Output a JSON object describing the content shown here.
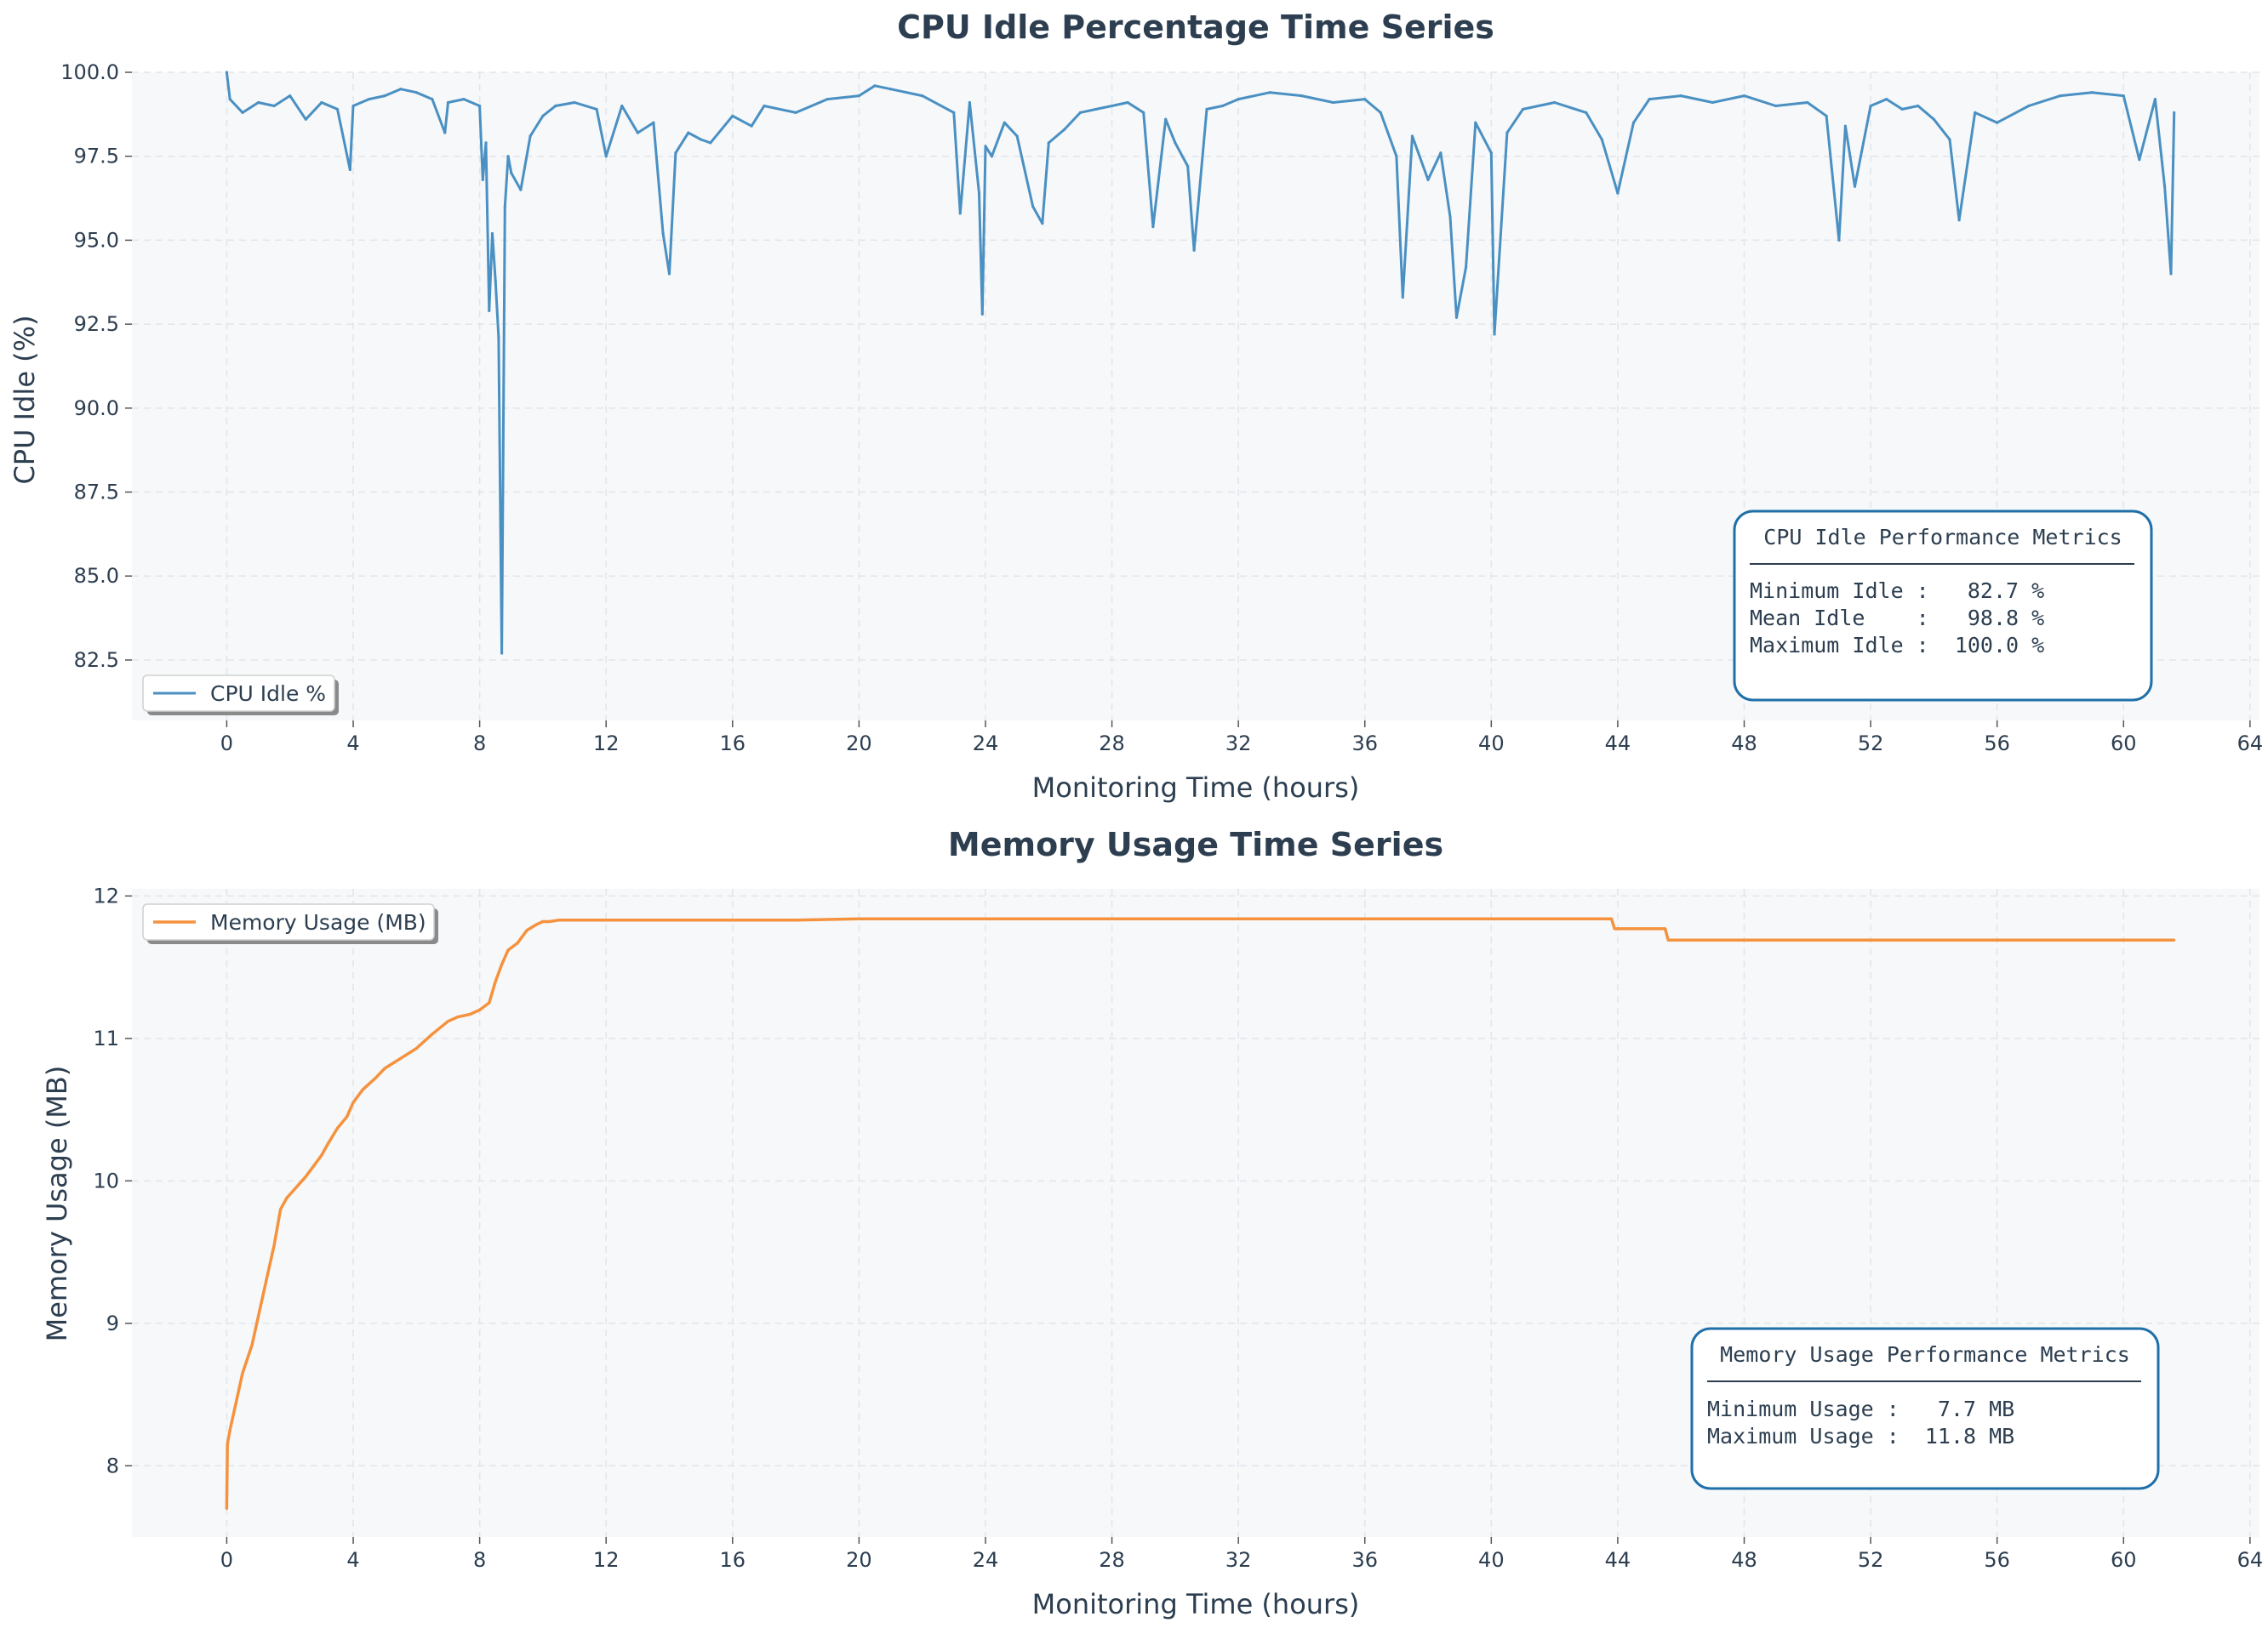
{
  "colors": {
    "cpu_line": "#4a90c2",
    "mem_line": "#f5923e",
    "plot_bg": "#f6f8fa",
    "grid": "#e2e5ea",
    "text": "#2c3e50",
    "box_border": "#1f6fa8"
  },
  "chart_data": [
    {
      "type": "line",
      "title": "CPU Idle Percentage Time Series",
      "xlabel": "Monitoring Time (hours)",
      "ylabel": "CPU Idle (%)",
      "xlim": [
        -3,
        64.3
      ],
      "ylim": [
        80.7,
        100
      ],
      "xticks": [
        0,
        4,
        8,
        12,
        16,
        20,
        24,
        28,
        32,
        36,
        40,
        44,
        48,
        52,
        56,
        60,
        64
      ],
      "yticks": [
        82.5,
        85.0,
        87.5,
        90.0,
        92.5,
        95.0,
        97.5,
        100.0
      ],
      "grid": true,
      "legend": "lower-left",
      "series": [
        {
          "name": "CPU Idle %",
          "x": [
            0,
            0.1,
            0.5,
            1,
            1.5,
            2,
            2.5,
            3,
            3.5,
            3.9,
            4,
            4.5,
            5,
            5.5,
            6,
            6.5,
            6.9,
            7,
            7.5,
            8,
            8.1,
            8.2,
            8.3,
            8.4,
            8.5,
            8.6,
            8.7,
            8.8,
            8.9,
            9,
            9.3,
            9.6,
            10,
            10.4,
            11,
            11.7,
            12,
            12.5,
            13,
            13.5,
            13.8,
            14,
            14.2,
            14.6,
            15,
            15.3,
            16,
            16.6,
            17,
            18,
            19,
            20,
            20.5,
            21,
            22,
            23,
            23.2,
            23.5,
            23.8,
            23.9,
            24,
            24.2,
            24.6,
            25,
            25.5,
            25.8,
            26,
            26.5,
            27,
            27.5,
            28,
            28.5,
            29,
            29.3,
            29.7,
            30,
            30.4,
            30.6,
            31,
            31.5,
            32,
            33,
            34,
            35,
            36,
            36.5,
            37,
            37.2,
            37.5,
            38,
            38.4,
            38.7,
            38.9,
            39.2,
            39.5,
            40,
            40.1,
            40.5,
            41,
            42,
            43,
            43.5,
            44,
            44.5,
            45,
            46,
            47,
            48,
            49,
            50,
            50.6,
            51,
            51.2,
            51.5,
            52,
            52.5,
            53,
            53.5,
            54,
            54.5,
            54.8,
            55.3,
            56,
            57,
            58,
            59,
            60,
            60.5,
            61,
            61.3,
            61.5,
            61.6
          ],
          "y": [
            100.0,
            99.2,
            98.8,
            99.1,
            99.0,
            99.3,
            98.6,
            99.1,
            98.9,
            97.1,
            99.0,
            99.2,
            99.3,
            99.5,
            99.4,
            99.2,
            98.2,
            99.1,
            99.2,
            99.0,
            96.8,
            97.9,
            92.9,
            95.2,
            93.8,
            92.1,
            82.7,
            96.0,
            97.5,
            97.0,
            96.5,
            98.1,
            98.7,
            99.0,
            99.1,
            98.9,
            97.5,
            99.0,
            98.2,
            98.5,
            95.2,
            94.0,
            97.6,
            98.2,
            98.0,
            97.9,
            98.7,
            98.4,
            99.0,
            98.8,
            99.2,
            99.3,
            99.6,
            99.5,
            99.3,
            98.8,
            95.8,
            99.1,
            96.4,
            92.8,
            97.8,
            97.5,
            98.5,
            98.1,
            96.0,
            95.5,
            97.9,
            98.3,
            98.8,
            98.9,
            99.0,
            99.1,
            98.8,
            95.4,
            98.6,
            97.9,
            97.2,
            94.7,
            98.9,
            99.0,
            99.2,
            99.4,
            99.3,
            99.1,
            99.2,
            98.8,
            97.5,
            93.3,
            98.1,
            96.8,
            97.6,
            95.7,
            92.7,
            94.2,
            98.5,
            97.6,
            92.2,
            98.2,
            98.9,
            99.1,
            98.8,
            98.0,
            96.4,
            98.5,
            99.2,
            99.3,
            99.1,
            99.3,
            99.0,
            99.1,
            98.7,
            95.0,
            98.4,
            96.6,
            99.0,
            99.2,
            98.9,
            99.0,
            98.6,
            98.0,
            95.6,
            98.8,
            98.5,
            99.0,
            99.3,
            99.4,
            99.3,
            97.4,
            99.2,
            96.6,
            94.0,
            98.8
          ]
        }
      ],
      "annotation": {
        "title": "CPU Idle Performance Metrics",
        "lines": [
          "Minimum Idle :   82.7 %",
          "Mean Idle    :   98.8 %",
          "Maximum Idle :  100.0 %"
        ]
      }
    },
    {
      "type": "line",
      "title": "Memory Usage Time Series",
      "xlabel": "Monitoring Time (hours)",
      "ylabel": "Memory Usage (MB)",
      "xlim": [
        -3,
        64.3
      ],
      "ylim": [
        7.5,
        12.05
      ],
      "xticks": [
        0,
        4,
        8,
        12,
        16,
        20,
        24,
        28,
        32,
        36,
        40,
        44,
        48,
        52,
        56,
        60,
        64
      ],
      "yticks": [
        8,
        9,
        10,
        11,
        12
      ],
      "grid": true,
      "legend": "upper-left",
      "series": [
        {
          "name": "Memory Usage (MB)",
          "x": [
            0,
            0.02,
            0.1,
            0.3,
            0.5,
            0.8,
            1.0,
            1.3,
            1.5,
            1.7,
            1.9,
            2.1,
            2.5,
            3.0,
            3.2,
            3.5,
            3.8,
            4.0,
            4.3,
            4.7,
            5.0,
            5.5,
            6.0,
            6.5,
            7.0,
            7.3,
            7.7,
            8.0,
            8.3,
            8.5,
            8.7,
            8.9,
            9.2,
            9.5,
            9.8,
            10.0,
            10.2,
            10.5,
            11.0,
            12.0,
            14.0,
            16.0,
            18.0,
            20.0,
            25.0,
            30.0,
            35.0,
            40.0,
            43.8,
            43.9,
            44.5,
            45.5,
            45.6,
            50.0,
            55.0,
            60.0,
            61.6
          ],
          "y": [
            7.7,
            8.15,
            8.25,
            8.45,
            8.65,
            8.85,
            9.05,
            9.35,
            9.55,
            9.8,
            9.88,
            9.93,
            10.03,
            10.18,
            10.26,
            10.37,
            10.45,
            10.55,
            10.64,
            10.72,
            10.79,
            10.86,
            10.93,
            11.03,
            11.12,
            11.15,
            11.17,
            11.2,
            11.25,
            11.4,
            11.52,
            11.62,
            11.67,
            11.76,
            11.8,
            11.82,
            11.82,
            11.83,
            11.83,
            11.83,
            11.83,
            11.83,
            11.83,
            11.84,
            11.84,
            11.84,
            11.84,
            11.84,
            11.84,
            11.77,
            11.77,
            11.77,
            11.69,
            11.69,
            11.69,
            11.69,
            11.69
          ]
        }
      ],
      "annotation": {
        "title": "Memory Usage Performance Metrics",
        "lines": [
          "Minimum Usage :   7.7 MB",
          "Maximum Usage :  11.8 MB"
        ]
      }
    }
  ]
}
